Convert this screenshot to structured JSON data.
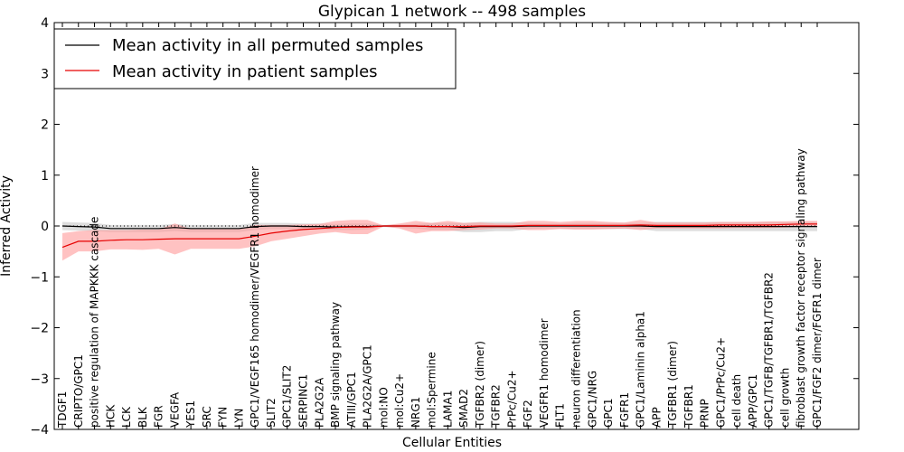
{
  "chart_data": {
    "type": "line",
    "title": "Glypican 1 network -- 498 samples",
    "xlabel": "Cellular Entities",
    "ylabel": "Inferred Activity",
    "ylim": [
      -4,
      4
    ],
    "yticks": [
      "−4",
      "−3",
      "−2",
      "−1",
      "0",
      "1",
      "2",
      "3",
      "4"
    ],
    "ytick_values": [
      -4,
      -3,
      -2,
      -1,
      0,
      1,
      2,
      3,
      4
    ],
    "grid": false,
    "legend_position": "top-left",
    "categories": [
      "TDGF1",
      "CRIPTO/GPC1",
      "positive regulation of MAPKKK cascade",
      "HCK",
      "LCK",
      "BLK",
      "FGR",
      "VEGFA",
      "YES1",
      "SRC",
      "FYN",
      "LYN",
      "GPC1/VEGF165 homodimer/VEGFR1 homodimer",
      "SLIT2",
      "GPC1/SLIT2",
      "SERPINC1",
      "PLA2G2A",
      "BMP signaling pathway",
      "ATIII/GPC1",
      "PLA2G2A/GPC1",
      "mol:NO",
      "mol:Cu2+",
      "NRG1",
      "mol:Spermine",
      "LAMA1",
      "SMAD2",
      "TGFBR2 (dimer)",
      "TGFBR2",
      "PrPc/Cu2+",
      "FGF2",
      "VEGFR1 homodimer",
      "FLT1",
      "neuron differentiation",
      "GPC1/NRG",
      "GPC1",
      "FGFR1",
      "GPC1/Laminin alpha1",
      "APP",
      "TGFBR1 (dimer)",
      "TGFBR1",
      "PRNP",
      "GPC1/PrPc/Cu2+",
      "cell death",
      "APP/GPC1",
      "GPC1/TGFB/TGFBR1/TGFBR2",
      "cell growth",
      "fibroblast growth factor receptor signaling pathway",
      "GPC1/FGF2 dimer/FGFR1 dimer"
    ],
    "series": [
      {
        "name": "Mean activity in all permuted samples",
        "color": "#000000",
        "values": [
          0.0,
          -0.01,
          -0.02,
          -0.05,
          -0.05,
          -0.05,
          -0.05,
          -0.03,
          -0.05,
          -0.05,
          -0.05,
          -0.05,
          -0.01,
          0.0,
          0.0,
          -0.01,
          -0.01,
          -0.02,
          -0.01,
          -0.01,
          0.0,
          0.0,
          0.0,
          -0.01,
          -0.01,
          -0.03,
          -0.01,
          -0.01,
          -0.01,
          0.0,
          0.0,
          0.0,
          0.0,
          0.0,
          0.0,
          0.0,
          0.0,
          -0.01,
          -0.01,
          -0.01,
          -0.01,
          -0.01,
          -0.01,
          -0.01,
          -0.01,
          -0.01,
          -0.01,
          -0.01
        ],
        "lower": [
          -0.08,
          -0.09,
          -0.1,
          -0.12,
          -0.12,
          -0.12,
          -0.12,
          -0.1,
          -0.12,
          -0.12,
          -0.12,
          -0.12,
          -0.08,
          -0.06,
          -0.06,
          -0.07,
          -0.07,
          -0.08,
          -0.08,
          -0.07,
          -0.02,
          -0.04,
          -0.05,
          -0.08,
          -0.08,
          -0.12,
          -0.12,
          -0.1,
          -0.1,
          -0.06,
          -0.05,
          -0.05,
          -0.06,
          -0.06,
          -0.06,
          -0.06,
          -0.06,
          -0.1,
          -0.1,
          -0.1,
          -0.1,
          -0.1,
          -0.1,
          -0.1,
          -0.1,
          -0.1,
          -0.1,
          -0.1
        ],
        "upper": [
          0.08,
          0.07,
          0.06,
          0.02,
          0.02,
          0.02,
          0.02,
          0.04,
          0.02,
          0.02,
          0.02,
          0.02,
          0.06,
          0.06,
          0.06,
          0.05,
          0.05,
          0.04,
          0.05,
          0.05,
          0.02,
          0.03,
          0.04,
          0.06,
          0.06,
          0.06,
          0.08,
          0.08,
          0.08,
          0.06,
          0.05,
          0.05,
          0.06,
          0.06,
          0.06,
          0.06,
          0.06,
          0.08,
          0.08,
          0.08,
          0.08,
          0.08,
          0.08,
          0.08,
          0.08,
          0.08,
          0.08,
          0.08
        ]
      },
      {
        "name": "Mean activity in patient samples",
        "color": "#e60000",
        "fill": "#ff9999",
        "values": [
          -0.42,
          -0.3,
          -0.3,
          -0.28,
          -0.27,
          -0.27,
          -0.26,
          -0.25,
          -0.25,
          -0.25,
          -0.25,
          -0.25,
          -0.2,
          -0.14,
          -0.1,
          -0.07,
          -0.05,
          -0.03,
          -0.02,
          -0.02,
          0.0,
          0.0,
          0.0,
          -0.01,
          -0.01,
          -0.01,
          0.0,
          0.0,
          0.0,
          0.01,
          0.01,
          0.01,
          0.01,
          0.01,
          0.01,
          0.01,
          0.02,
          0.01,
          0.01,
          0.01,
          0.01,
          0.02,
          0.02,
          0.02,
          0.02,
          0.03,
          0.04,
          0.04
        ],
        "lower": [
          -0.68,
          -0.5,
          -0.5,
          -0.46,
          -0.46,
          -0.47,
          -0.45,
          -0.56,
          -0.45,
          -0.45,
          -0.45,
          -0.45,
          -0.4,
          -0.3,
          -0.25,
          -0.2,
          -0.15,
          -0.12,
          -0.16,
          -0.16,
          -0.01,
          -0.05,
          -0.15,
          -0.1,
          -0.1,
          -0.08,
          -0.07,
          -0.05,
          -0.05,
          -0.08,
          -0.08,
          -0.06,
          -0.07,
          -0.07,
          -0.06,
          -0.05,
          -0.08,
          -0.05,
          -0.05,
          -0.05,
          -0.05,
          -0.05,
          -0.04,
          -0.04,
          -0.04,
          -0.03,
          -0.02,
          -0.02
        ],
        "upper": [
          -0.14,
          -0.1,
          -0.08,
          -0.08,
          -0.08,
          -0.07,
          -0.07,
          0.05,
          -0.06,
          -0.06,
          -0.06,
          -0.06,
          0.02,
          0.02,
          0.02,
          0.03,
          0.04,
          0.1,
          0.12,
          0.12,
          0.01,
          0.05,
          0.1,
          0.06,
          0.1,
          0.06,
          0.07,
          0.05,
          0.05,
          0.1,
          0.1,
          0.08,
          0.1,
          0.1,
          0.08,
          0.07,
          0.12,
          0.07,
          0.07,
          0.07,
          0.07,
          0.08,
          0.08,
          0.08,
          0.09,
          0.09,
          0.1,
          0.1
        ]
      }
    ],
    "reference_line": {
      "value": 0,
      "style": "dotted"
    }
  }
}
